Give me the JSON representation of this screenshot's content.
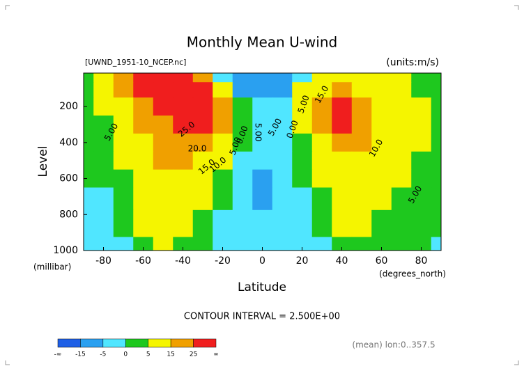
{
  "chart_data": {
    "type": "contour",
    "title": "Monthly Mean U-wind",
    "subtitle_left": "[UWND_1951-10_NCEP.nc]",
    "subtitle_right": "(units:m/s)",
    "ylabel": "Level",
    "yunits": "(millibar)",
    "xlabel": "Latitude",
    "xunits": "(degrees_north)",
    "footnote": "CONTOUR INTERVAL = 2.500E+00",
    "source_note": "(mean) lon:0..357.5",
    "xlim": [
      -90,
      90
    ],
    "xticks": [
      -80,
      -60,
      -40,
      -20,
      0,
      20,
      40,
      60,
      80
    ],
    "ylim": [
      1000,
      14
    ],
    "yticks": [
      200,
      400,
      600,
      800,
      1000
    ],
    "x": [
      -90,
      -80,
      -70,
      -60,
      -50,
      -40,
      -30,
      -20,
      -10,
      0,
      10,
      20,
      30,
      40,
      50,
      60,
      70,
      80,
      90
    ],
    "y": [
      30,
      100,
      200,
      300,
      400,
      500,
      600,
      700,
      850,
      1000
    ],
    "z": [
      [
        2,
        5,
        15,
        26,
        28,
        25,
        15,
        -5,
        -12,
        -15,
        -10,
        -5,
        5,
        8,
        8,
        6,
        5,
        3,
        1
      ],
      [
        3,
        5,
        15,
        25,
        30,
        28,
        25,
        5,
        -10,
        -12,
        -10,
        5,
        12,
        15,
        10,
        8,
        5,
        3,
        2
      ],
      [
        2,
        5,
        10,
        20,
        25,
        28,
        32,
        15,
        0,
        -3,
        -2,
        8,
        22,
        30,
        20,
        12,
        10,
        8,
        3
      ],
      [
        1,
        4,
        8,
        15,
        22,
        25,
        28,
        15,
        2,
        -4,
        -3,
        5,
        18,
        25,
        18,
        12,
        10,
        8,
        3
      ],
      [
        1,
        3,
        6,
        13,
        18,
        20,
        22,
        12,
        0,
        -5,
        -3,
        3,
        13,
        18,
        15,
        11,
        9,
        6,
        3
      ],
      [
        0,
        2,
        5,
        11,
        16,
        16,
        14,
        7,
        -2,
        -5,
        -3,
        1,
        8,
        13,
        12,
        9,
        7,
        4,
        2
      ],
      [
        0,
        1,
        4,
        10,
        13,
        13,
        10,
        4,
        -3,
        -6,
        -4,
        0,
        5,
        10,
        10,
        7,
        5,
        3,
        1
      ],
      [
        -1,
        -1,
        3,
        8,
        11,
        10,
        7,
        2,
        -4,
        -6,
        -4,
        -1,
        3,
        8,
        8,
        5,
        3,
        2,
        1
      ],
      [
        -2,
        -2,
        1,
        5,
        8,
        7,
        3,
        -1,
        -5,
        -5,
        -3,
        -2,
        1,
        5,
        5,
        3,
        2,
        1,
        0
      ],
      [
        -1,
        -1,
        -1,
        3,
        5,
        4,
        1,
        -3,
        -4,
        -4,
        -3,
        -2,
        -1,
        2,
        3,
        2,
        1,
        0,
        -1
      ]
    ],
    "levels": [
      -15,
      -5,
      0,
      5,
      15,
      25
    ],
    "level_ends": [
      "-∞",
      "∞"
    ],
    "colors": [
      "#1e5fe6",
      "#2aa0f0",
      "#50e6ff",
      "#1ec81e",
      "#f5f500",
      "#f0a000",
      "#f01e1e"
    ],
    "contour_labels": [
      "5.00",
      "25.0",
      "20.0",
      "15.0",
      "10.0",
      "5.00",
      "0.00",
      "5.00",
      "5.00",
      "0.00",
      "5.00",
      "15.0",
      "10.0",
      "5.00"
    ]
  }
}
